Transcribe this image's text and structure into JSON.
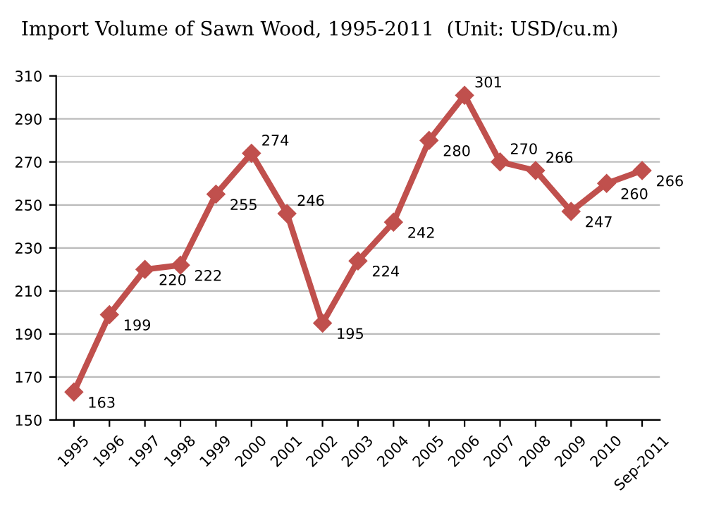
{
  "chart_data": {
    "type": "line",
    "title": "Import Volume of Sawn Wood, 1995-2011  (Unit: USD/cu.m)",
    "categories": [
      "1995",
      "1996",
      "1997",
      "1998",
      "1999",
      "2000",
      "2001",
      "2002",
      "2003",
      "2004",
      "2005",
      "2006",
      "2007",
      "2008",
      "2009",
      "2010",
      "Sep-2011"
    ],
    "series": [
      {
        "color": "#c0504d",
        "values": [
          163,
          199,
          220,
          222,
          255,
          274,
          246,
          195,
          224,
          242,
          280,
          301,
          270,
          266,
          247,
          260,
          266
        ]
      }
    ],
    "ylim": [
      150,
      310
    ],
    "yticks": [
      150,
      170,
      190,
      210,
      230,
      250,
      270,
      290,
      310
    ],
    "grid": "y",
    "marker": "diamond",
    "line_style": "solid",
    "data_labels": true,
    "legend": false
  }
}
